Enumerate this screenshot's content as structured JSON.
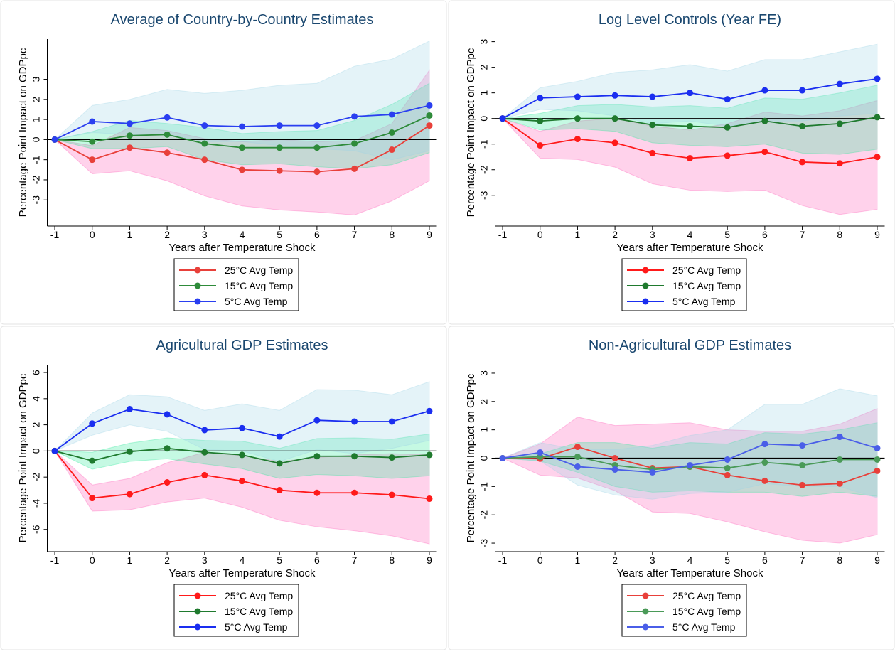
{
  "chart_data": [
    {
      "type": "line",
      "title": "Average of Country-by-Country Estimates",
      "xlabel": "Years after Temperature Shock",
      "ylabel": "Percentage Point Impact on GDPpc",
      "x": [
        -1,
        0,
        1,
        2,
        3,
        4,
        5,
        6,
        7,
        8,
        9
      ],
      "xlim": [
        -1.2,
        9.2
      ],
      "xticks": [
        -1,
        0,
        1,
        2,
        3,
        4,
        5,
        6,
        7,
        8,
        9
      ],
      "ylim": [
        -4.3,
        5.0
      ],
      "yticks": [
        -3,
        -2,
        -1,
        0,
        1,
        2,
        3
      ],
      "reference_line": 0,
      "series": [
        {
          "name": "25°C Avg Temp",
          "color": "#e8403a",
          "band_color": "#ff5cb8",
          "values": [
            0,
            -1.0,
            -0.4,
            -0.65,
            -1.0,
            -1.5,
            -1.55,
            -1.6,
            -1.45,
            -0.5,
            0.7
          ],
          "ci_lower": [
            0,
            -1.7,
            -1.55,
            -2.05,
            -2.8,
            -3.3,
            -3.5,
            -3.6,
            -3.75,
            -3.05,
            -2.05
          ],
          "ci_upper": [
            0,
            -0.3,
            0.6,
            0.45,
            0.05,
            -0.1,
            0,
            -0.1,
            -0.05,
            0.8,
            3.45
          ]
        },
        {
          "name": "15°C Avg Temp",
          "color": "#2e8b3a",
          "band_color": "#2ee89a",
          "values": [
            0,
            -0.1,
            0.2,
            0.25,
            -0.2,
            -0.4,
            -0.4,
            -0.4,
            -0.2,
            0.35,
            1.2
          ],
          "ci_lower": [
            0,
            -0.45,
            -0.45,
            -0.35,
            -1.0,
            -1.25,
            -1.2,
            -1.35,
            -1.45,
            -1.25,
            -0.65
          ],
          "ci_upper": [
            0,
            0.4,
            0.95,
            0.8,
            0.6,
            0.3,
            0.4,
            0.45,
            0.95,
            1.75,
            2.8
          ]
        },
        {
          "name": "5°C Avg Temp",
          "color": "#2a3ff0",
          "band_color": "#9fd3e6",
          "values": [
            0,
            0.9,
            0.8,
            1.1,
            0.7,
            0.65,
            0.7,
            0.7,
            1.15,
            1.25,
            1.7
          ],
          "ci_lower": [
            0,
            0.35,
            0.25,
            0.25,
            -0.1,
            -0.1,
            -0.3,
            -0.45,
            -0.55,
            -1.0,
            -0.55
          ],
          "ci_upper": [
            0,
            1.7,
            2.0,
            2.5,
            2.3,
            2.45,
            2.7,
            2.8,
            3.65,
            4.0,
            4.9
          ]
        }
      ]
    },
    {
      "type": "line",
      "title": "Log Level Controls (Year FE)",
      "xlabel": "Years after Temperature Shock",
      "ylabel": "Percentage Point Impact on GDPpc",
      "x": [
        -1,
        0,
        1,
        2,
        3,
        4,
        5,
        6,
        7,
        8,
        9
      ],
      "xlim": [
        -1.2,
        9.2
      ],
      "xticks": [
        -1,
        0,
        1,
        2,
        3,
        4,
        5,
        6,
        7,
        8,
        9
      ],
      "ylim": [
        -4.2,
        3.1
      ],
      "yticks": [
        -3,
        -2,
        -1,
        0,
        1,
        2,
        3
      ],
      "reference_line": 0,
      "series": [
        {
          "name": "25°C Avg Temp",
          "color": "#ff1a1a",
          "band_color": "#ff5cb8",
          "values": [
            0,
            -1.05,
            -0.8,
            -0.95,
            -1.35,
            -1.55,
            -1.45,
            -1.3,
            -1.7,
            -1.75,
            -1.5
          ],
          "ci_lower": [
            0,
            -1.55,
            -1.6,
            -1.9,
            -2.55,
            -2.8,
            -2.85,
            -2.8,
            -3.4,
            -3.75,
            -3.55
          ],
          "ci_upper": [
            0,
            -0.5,
            -0.1,
            0,
            -0.3,
            -0.45,
            -0.2,
            0.25,
            0.1,
            0.3,
            0.7
          ]
        },
        {
          "name": "15°C Avg Temp",
          "color": "#1f7a2e",
          "band_color": "#2ee89a",
          "values": [
            0,
            -0.1,
            0,
            0,
            -0.25,
            -0.3,
            -0.35,
            -0.1,
            -0.3,
            -0.2,
            0.05
          ],
          "ci_lower": [
            0,
            -0.45,
            -0.4,
            -0.5,
            -0.95,
            -1.05,
            -1.1,
            -1.0,
            -1.35,
            -1.4,
            -1.2
          ],
          "ci_upper": [
            0,
            0.2,
            0.5,
            0.55,
            0.45,
            0.5,
            0.4,
            0.8,
            0.75,
            1.0,
            1.3
          ]
        },
        {
          "name": "5°C Avg Temp",
          "color": "#1a2ef0",
          "band_color": "#9fd3e6",
          "values": [
            0,
            0.8,
            0.85,
            0.9,
            0.85,
            1.0,
            0.75,
            1.1,
            1.1,
            1.35,
            1.55
          ],
          "ci_lower": [
            0,
            0.35,
            0.3,
            0.1,
            -0.2,
            -0.1,
            -0.3,
            -0.1,
            -0.1,
            0.1,
            0.2
          ],
          "ci_upper": [
            0,
            1.2,
            1.45,
            1.8,
            1.9,
            2.1,
            1.85,
            2.3,
            2.3,
            2.6,
            2.9
          ]
        }
      ]
    },
    {
      "type": "line",
      "title": "Agricultural GDP Estimates",
      "xlabel": "Years after Temperature Shock",
      "ylabel": "Percentage Point Impact on GDPpc",
      "x": [
        -1,
        0,
        1,
        2,
        3,
        4,
        5,
        6,
        7,
        8,
        9
      ],
      "xlim": [
        -1.2,
        9.2
      ],
      "xticks": [
        -1,
        0,
        1,
        2,
        3,
        4,
        5,
        6,
        7,
        8,
        9
      ],
      "ylim": [
        -7.7,
        6.6
      ],
      "yticks": [
        -6,
        -4,
        -2,
        0,
        2,
        4,
        6
      ],
      "reference_line": 0,
      "series": [
        {
          "name": "25°C Avg Temp",
          "color": "#ff1a1a",
          "band_color": "#ff5cb8",
          "values": [
            0,
            -3.6,
            -3.3,
            -2.4,
            -1.85,
            -2.3,
            -3.0,
            -3.2,
            -3.2,
            -3.35,
            -3.65
          ],
          "ci_lower": [
            0,
            -4.6,
            -4.5,
            -3.9,
            -3.6,
            -4.3,
            -5.3,
            -5.8,
            -6.1,
            -6.5,
            -7.1
          ],
          "ci_upper": [
            0,
            -2.6,
            -2.1,
            -0.9,
            -0.1,
            -0.35,
            -0.8,
            -0.5,
            -0.3,
            -0.2,
            -0.3
          ]
        },
        {
          "name": "15°C Avg Temp",
          "color": "#1f7a2e",
          "band_color": "#2ee89a",
          "values": [
            0,
            -0.75,
            -0.05,
            0.2,
            -0.1,
            -0.3,
            -0.95,
            -0.4,
            -0.4,
            -0.5,
            -0.3
          ],
          "ci_lower": [
            0,
            -1.4,
            -0.8,
            -0.6,
            -1.0,
            -1.35,
            -2.1,
            -1.8,
            -1.9,
            -2.1,
            -1.9
          ],
          "ci_upper": [
            0,
            -0.1,
            0.6,
            1.0,
            0.8,
            0.75,
            0.2,
            0.95,
            1.0,
            0.9,
            1.3
          ]
        },
        {
          "name": "5°C Avg Temp",
          "color": "#1a2ef0",
          "band_color": "#9fd3e6",
          "values": [
            0,
            2.1,
            3.2,
            2.8,
            1.6,
            1.75,
            1.1,
            2.35,
            2.25,
            2.25,
            3.05
          ],
          "ci_lower": [
            0,
            1.2,
            2.0,
            1.5,
            0.1,
            0,
            -0.8,
            0.1,
            -0.2,
            0.2,
            0.8
          ],
          "ci_upper": [
            0,
            2.9,
            4.3,
            4.15,
            3.1,
            3.6,
            3.1,
            4.7,
            4.65,
            4.3,
            5.3
          ]
        }
      ]
    },
    {
      "type": "line",
      "title": "Non-Agricultural GDP Estimates",
      "xlabel": "Years after Temperature Shock",
      "ylabel": "Percentage Point Impact on GDPpc",
      "x": [
        -1,
        0,
        1,
        2,
        3,
        4,
        5,
        6,
        7,
        8,
        9
      ],
      "xlim": [
        -1.2,
        9.2
      ],
      "xticks": [
        -1,
        0,
        1,
        2,
        3,
        4,
        5,
        6,
        7,
        8,
        9
      ],
      "ylim": [
        -3.3,
        3.3
      ],
      "yticks": [
        -3,
        -2,
        -1,
        0,
        1,
        2,
        3
      ],
      "reference_line": 0,
      "series": [
        {
          "name": "25°C Avg Temp",
          "color": "#e8403a",
          "band_color": "#ff5cb8",
          "values": [
            0,
            -0.02,
            0.4,
            0,
            -0.35,
            -0.3,
            -0.6,
            -0.8,
            -0.95,
            -0.9,
            -0.45
          ],
          "ci_lower": [
            0,
            -0.6,
            -0.7,
            -1.15,
            -1.9,
            -1.95,
            -2.25,
            -2.6,
            -2.9,
            -3.0,
            -2.7
          ],
          "ci_upper": [
            0,
            0.5,
            1.45,
            1.15,
            1.2,
            1.25,
            1.0,
            0.95,
            0.95,
            1.2,
            1.75
          ]
        },
        {
          "name": "15°C Avg Temp",
          "color": "#4a9a58",
          "band_color": "#2ee89a",
          "values": [
            0,
            0.05,
            0.05,
            -0.25,
            -0.4,
            -0.3,
            -0.35,
            -0.15,
            -0.25,
            -0.05,
            -0.05
          ],
          "ci_lower": [
            0,
            -0.1,
            -0.5,
            -1.0,
            -1.2,
            -1.15,
            -1.2,
            -1.2,
            -1.35,
            -1.2,
            -1.35
          ],
          "ci_upper": [
            0,
            0.15,
            0.55,
            0.55,
            0.35,
            0.55,
            0.5,
            0.9,
            0.85,
            1.0,
            1.25
          ]
        },
        {
          "name": "5°C Avg Temp",
          "color": "#4a5ee8",
          "band_color": "#9fd3e6",
          "values": [
            0,
            0.2,
            -0.3,
            -0.4,
            -0.5,
            -0.25,
            -0.05,
            0.5,
            0.45,
            0.75,
            0.35
          ],
          "ci_lower": [
            0,
            -0.1,
            -0.95,
            -1.3,
            -1.45,
            -1.25,
            -1.2,
            -0.9,
            -1.0,
            -1.0,
            -1.4
          ],
          "ci_upper": [
            0,
            0.55,
            0.3,
            0.3,
            0.45,
            0.8,
            1.0,
            1.9,
            1.9,
            2.45,
            2.2
          ]
        }
      ]
    }
  ]
}
